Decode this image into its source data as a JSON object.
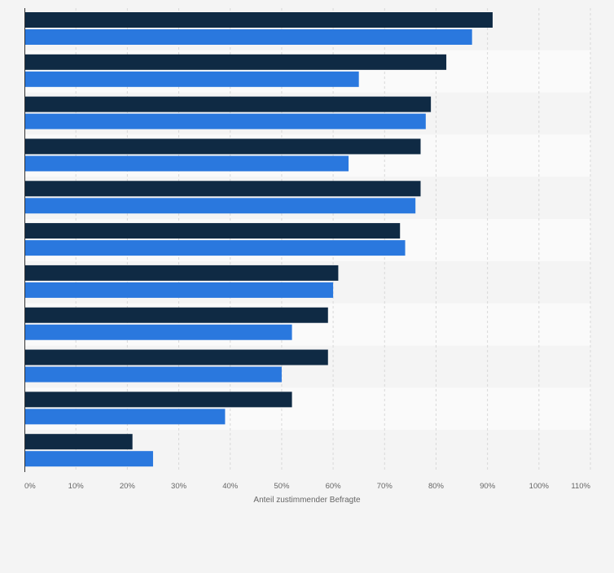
{
  "chart_data": {
    "type": "bar",
    "orientation": "horizontal",
    "categories": [
      "",
      "",
      "",
      "",
      "",
      "",
      "",
      "",
      "",
      "",
      ""
    ],
    "series": [
      {
        "values": [
          91,
          82,
          79,
          77,
          77,
          73,
          61,
          59,
          59,
          52,
          21
        ]
      },
      {
        "values": [
          87,
          65,
          78,
          63,
          76,
          74,
          60,
          52,
          50,
          39,
          25
        ]
      }
    ],
    "colors": [
      "#0f2a44",
      "#2a78de"
    ],
    "xlabel": "Anteil zustimmender Befragte",
    "xlim": [
      0,
      110
    ],
    "xticks": [
      0,
      10,
      20,
      30,
      40,
      50,
      60,
      70,
      80,
      90,
      100,
      110
    ],
    "xtick_labels": [
      "0%",
      "10%",
      "20%",
      "30%",
      "40%",
      "50%",
      "60%",
      "70%",
      "80%",
      "90%",
      "100%",
      "110%"
    ],
    "grid": "vertical",
    "legend": "none"
  }
}
